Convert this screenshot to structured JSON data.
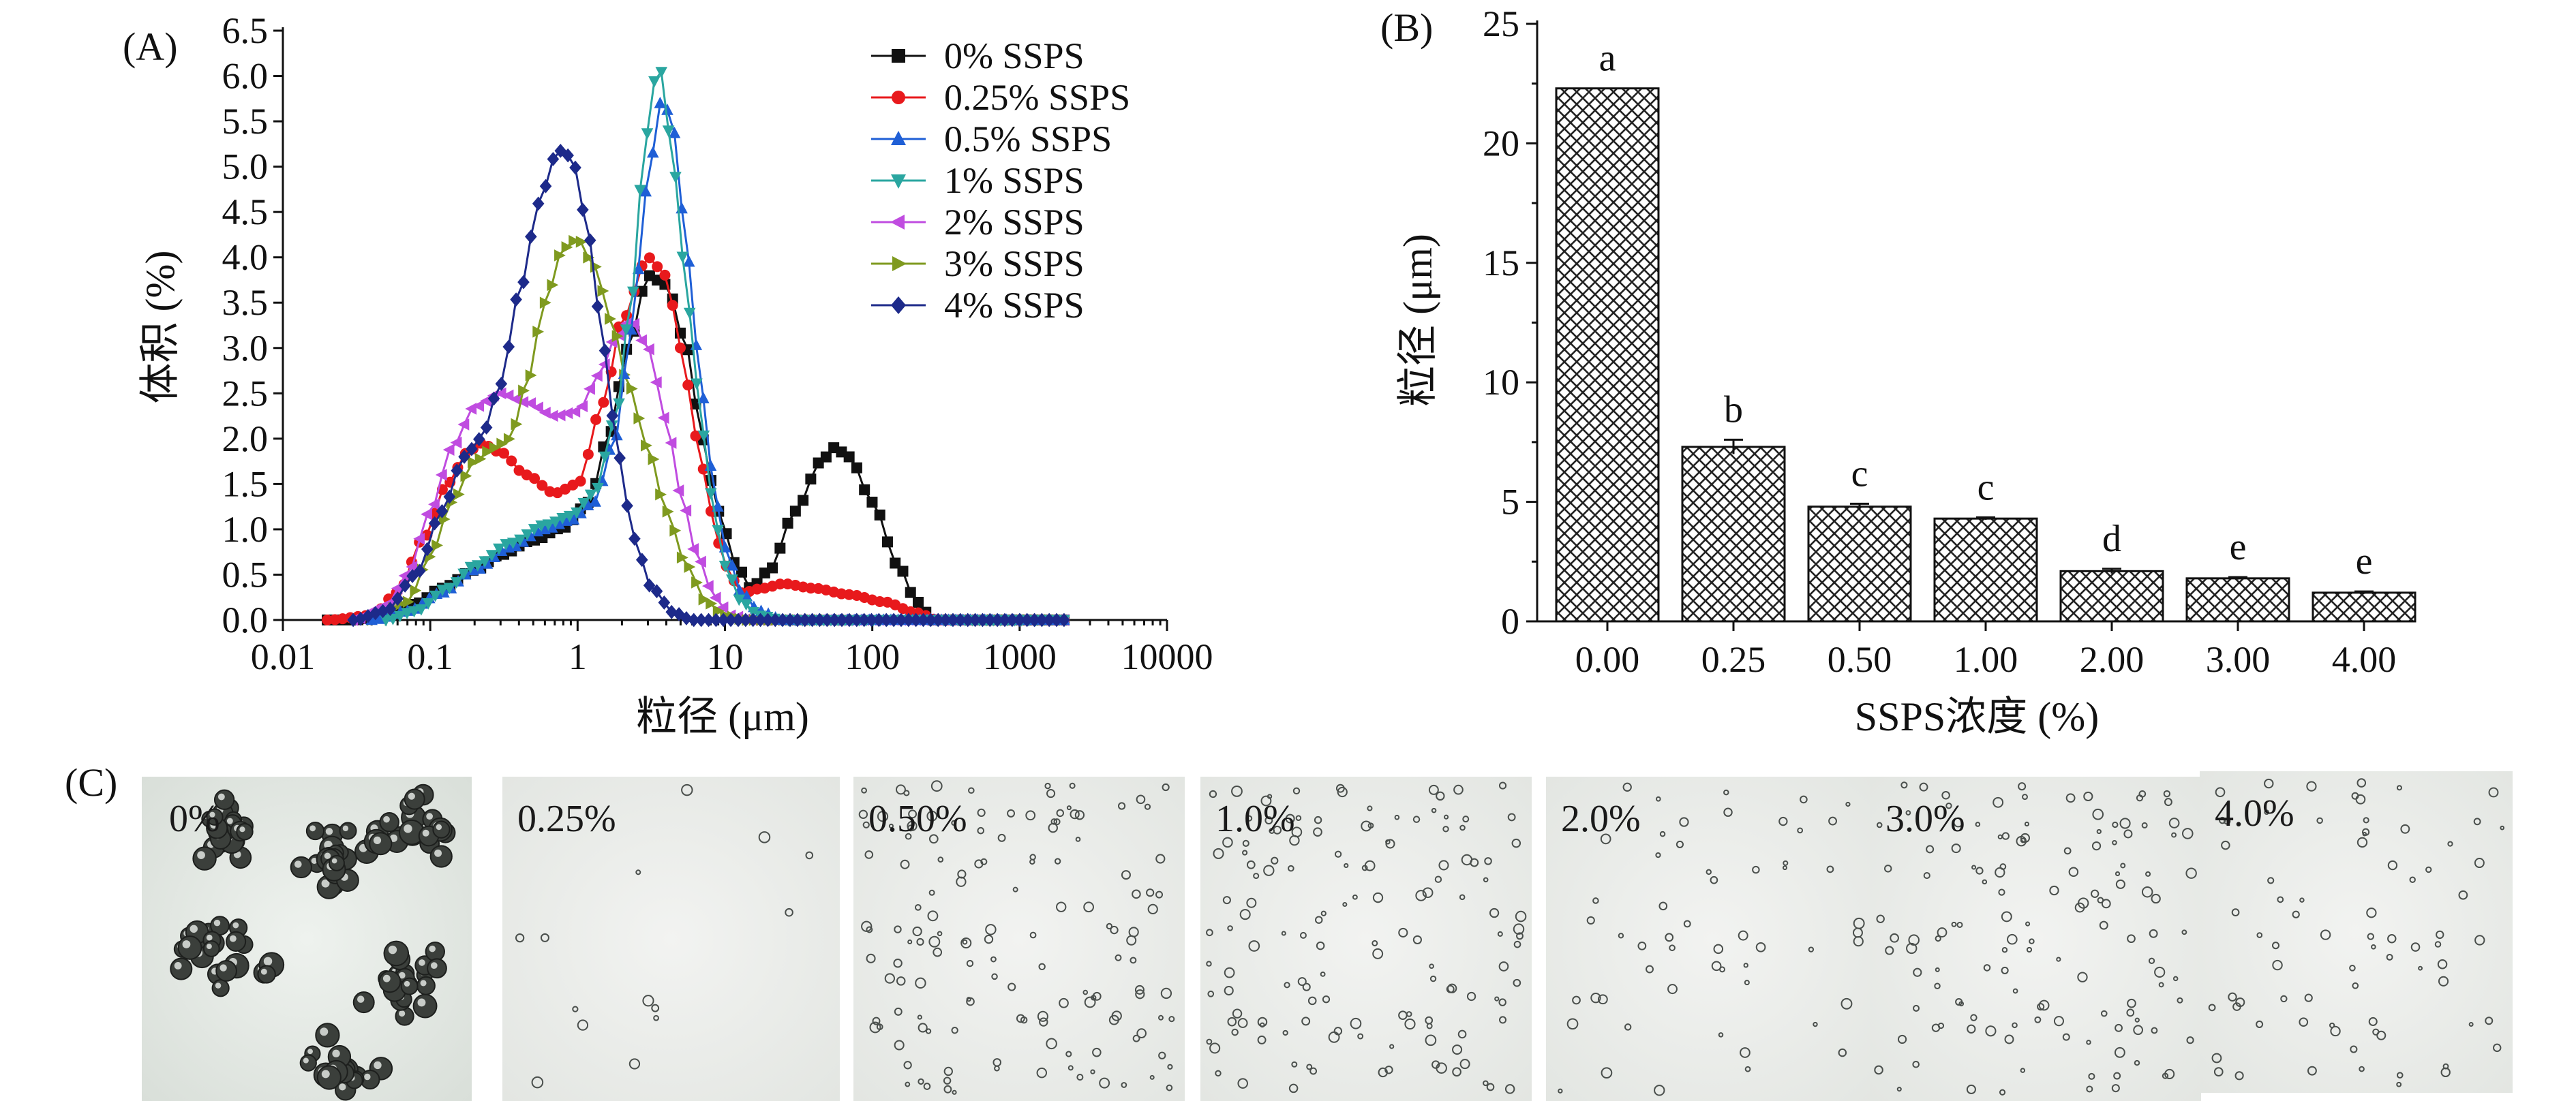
{
  "panels": {
    "a": "(A)",
    "b": "(B)",
    "c": "(C)"
  },
  "colors": {
    "axis": "#111111",
    "bar_fill": "#ffffff",
    "bar_hatch": "#222222"
  },
  "chart_data": [
    {
      "type": "line",
      "xscale": "log",
      "xlabel": "粒径 (μm)",
      "ylabel": "体积 (%)",
      "xlim": [
        0.01,
        10000
      ],
      "ylim": [
        0,
        6.5
      ],
      "xticks": [
        "0.01",
        "0.1",
        "1",
        "10",
        "100",
        "1000",
        "10000"
      ],
      "yticks": [
        "0.0",
        "0.5",
        "1.0",
        "1.5",
        "2.0",
        "2.5",
        "3.0",
        "3.5",
        "4.0",
        "4.5",
        "5.0",
        "5.5",
        "6.0",
        "6.5"
      ],
      "legend_position": "top-right",
      "series": [
        {
          "name": "0% SSPS",
          "color": "#111111",
          "marker": "square",
          "points": [
            [
              0.02,
              0
            ],
            [
              0.03,
              0
            ],
            [
              0.05,
              0.05
            ],
            [
              0.08,
              0.18
            ],
            [
              0.12,
              0.35
            ],
            [
              0.2,
              0.55
            ],
            [
              0.3,
              0.72
            ],
            [
              0.5,
              0.88
            ],
            [
              0.8,
              1.02
            ],
            [
              1.2,
              1.3
            ],
            [
              1.6,
              2.0
            ],
            [
              2.2,
              3.0
            ],
            [
              3,
              3.8
            ],
            [
              4,
              3.7
            ],
            [
              5.5,
              3.0
            ],
            [
              7,
              2.0
            ],
            [
              9,
              1.2
            ],
            [
              12,
              0.6
            ],
            [
              15,
              0.35
            ],
            [
              20,
              0.55
            ],
            [
              30,
              1.2
            ],
            [
              45,
              1.75
            ],
            [
              55,
              1.9
            ],
            [
              70,
              1.8
            ],
            [
              100,
              1.3
            ],
            [
              150,
              0.6
            ],
            [
              200,
              0.2
            ],
            [
              260,
              0
            ]
          ]
        },
        {
          "name": "0.25% SSPS",
          "color": "#e8191c",
          "marker": "circle",
          "points": [
            [
              0.02,
              0
            ],
            [
              0.04,
              0.05
            ],
            [
              0.06,
              0.3
            ],
            [
              0.09,
              0.9
            ],
            [
              0.13,
              1.5
            ],
            [
              0.18,
              1.85
            ],
            [
              0.22,
              1.95
            ],
            [
              0.3,
              1.85
            ],
            [
              0.45,
              1.6
            ],
            [
              0.7,
              1.4
            ],
            [
              1,
              1.5
            ],
            [
              1.5,
              2.4
            ],
            [
              2,
              3.3
            ],
            [
              3,
              4.0
            ],
            [
              4,
              3.8
            ],
            [
              5,
              3.0
            ],
            [
              6.5,
              2.0
            ],
            [
              8,
              1.2
            ],
            [
              10,
              0.6
            ],
            [
              13,
              0.3
            ],
            [
              18,
              0.35
            ],
            [
              25,
              0.4
            ],
            [
              40,
              0.35
            ],
            [
              70,
              0.28
            ],
            [
              120,
              0.2
            ],
            [
              200,
              0.08
            ],
            [
              280,
              0
            ]
          ]
        },
        {
          "name": "0.5% SSPS",
          "color": "#1f5fd6",
          "marker": "triangle-up",
          "points": [
            [
              0.04,
              0
            ],
            [
              0.07,
              0.1
            ],
            [
              0.12,
              0.3
            ],
            [
              0.2,
              0.55
            ],
            [
              0.35,
              0.8
            ],
            [
              0.6,
              1.0
            ],
            [
              0.9,
              1.1
            ],
            [
              1.3,
              1.3
            ],
            [
              1.8,
              2.0
            ],
            [
              2.3,
              3.2
            ],
            [
              3,
              4.8
            ],
            [
              3.6,
              5.7
            ],
            [
              4.3,
              5.6
            ],
            [
              5.2,
              4.5
            ],
            [
              6.5,
              3.0
            ],
            [
              8,
              1.7
            ],
            [
              10,
              0.8
            ],
            [
              13,
              0.3
            ],
            [
              17,
              0.1
            ],
            [
              25,
              0
            ]
          ]
        },
        {
          "name": "1% SSPS",
          "color": "#2aa6a0",
          "marker": "triangle-down",
          "points": [
            [
              0.05,
              0
            ],
            [
              0.08,
              0.1
            ],
            [
              0.13,
              0.35
            ],
            [
              0.2,
              0.6
            ],
            [
              0.35,
              0.85
            ],
            [
              0.6,
              1.05
            ],
            [
              0.9,
              1.15
            ],
            [
              1.3,
              1.4
            ],
            [
              1.8,
              2.2
            ],
            [
              2.3,
              3.5
            ],
            [
              2.8,
              5.0
            ],
            [
              3.2,
              5.9
            ],
            [
              3.6,
              6.1
            ],
            [
              4.3,
              5.3
            ],
            [
              5.2,
              4.0
            ],
            [
              6.5,
              2.6
            ],
            [
              8,
              1.4
            ],
            [
              10,
              0.6
            ],
            [
              13,
              0.2
            ],
            [
              17,
              0.05
            ],
            [
              25,
              0
            ]
          ]
        },
        {
          "name": "2% SSPS",
          "color": "#c04ce0",
          "marker": "triangle-left",
          "points": [
            [
              0.03,
              0
            ],
            [
              0.05,
              0.15
            ],
            [
              0.07,
              0.5
            ],
            [
              0.1,
              1.2
            ],
            [
              0.14,
              1.9
            ],
            [
              0.2,
              2.35
            ],
            [
              0.3,
              2.5
            ],
            [
              0.45,
              2.4
            ],
            [
              0.7,
              2.25
            ],
            [
              1,
              2.3
            ],
            [
              1.4,
              2.7
            ],
            [
              1.8,
              3.1
            ],
            [
              2.3,
              3.3
            ],
            [
              3,
              3.0
            ],
            [
              4,
              2.2
            ],
            [
              5,
              1.4
            ],
            [
              6.5,
              0.7
            ],
            [
              8.5,
              0.25
            ],
            [
              11,
              0.05
            ],
            [
              15,
              0
            ]
          ]
        },
        {
          "name": "3% SSPS",
          "color": "#7f9a1f",
          "marker": "triangle-right",
          "points": [
            [
              0.04,
              0
            ],
            [
              0.07,
              0.2
            ],
            [
              0.1,
              0.7
            ],
            [
              0.14,
              1.3
            ],
            [
              0.2,
              1.75
            ],
            [
              0.27,
              1.9
            ],
            [
              0.35,
              2.0
            ],
            [
              0.45,
              2.6
            ],
            [
              0.6,
              3.5
            ],
            [
              0.8,
              4.1
            ],
            [
              1,
              4.2
            ],
            [
              1.3,
              3.9
            ],
            [
              1.7,
              3.3
            ],
            [
              2.2,
              2.6
            ],
            [
              3,
              1.9
            ],
            [
              4,
              1.2
            ],
            [
              5.5,
              0.6
            ],
            [
              7.5,
              0.2
            ],
            [
              10,
              0.05
            ],
            [
              14,
              0
            ]
          ]
        },
        {
          "name": "4% SSPS",
          "color": "#1d2a8a",
          "marker": "diamond",
          "points": [
            [
              0.03,
              0
            ],
            [
              0.05,
              0.1
            ],
            [
              0.08,
              0.5
            ],
            [
              0.12,
              1.2
            ],
            [
              0.17,
              1.8
            ],
            [
              0.22,
              2.0
            ],
            [
              0.3,
              2.6
            ],
            [
              0.4,
              3.6
            ],
            [
              0.55,
              4.6
            ],
            [
              0.7,
              5.1
            ],
            [
              0.8,
              5.2
            ],
            [
              0.95,
              5.0
            ],
            [
              1.2,
              4.2
            ],
            [
              1.5,
              3.0
            ],
            [
              1.9,
              1.8
            ],
            [
              2.4,
              0.9
            ],
            [
              3.2,
              0.35
            ],
            [
              4.5,
              0.08
            ],
            [
              6,
              0
            ]
          ]
        }
      ]
    },
    {
      "type": "bar",
      "xlabel": "SSPS浓度 (%)",
      "ylabel": "粒径 (μm)",
      "ylim": [
        0,
        25
      ],
      "yticks": [
        "0",
        "5",
        "10",
        "15",
        "20",
        "25"
      ],
      "categories": [
        "0.00",
        "0.25",
        "0.50",
        "1.00",
        "2.00",
        "3.00",
        "4.00"
      ],
      "values": [
        22.3,
        7.3,
        4.8,
        4.3,
        2.1,
        1.8,
        1.2
      ],
      "errors": [
        0,
        0.3,
        0.12,
        0.05,
        0.1,
        0.05,
        0.05
      ],
      "letters": [
        "a",
        "b",
        "c",
        "c",
        "d",
        "e",
        "e"
      ]
    }
  ],
  "micrographs": {
    "labels": [
      "0%",
      "0.25%",
      "0.50%",
      "1.0%",
      "2.0%",
      "3.0%",
      "4.0%"
    ],
    "density": [
      60,
      14,
      140,
      140,
      55,
      130,
      75
    ],
    "droplet_scale": [
      3.0,
      1.2,
      1.0,
      1.0,
      1.0,
      1.0,
      0.9
    ]
  }
}
